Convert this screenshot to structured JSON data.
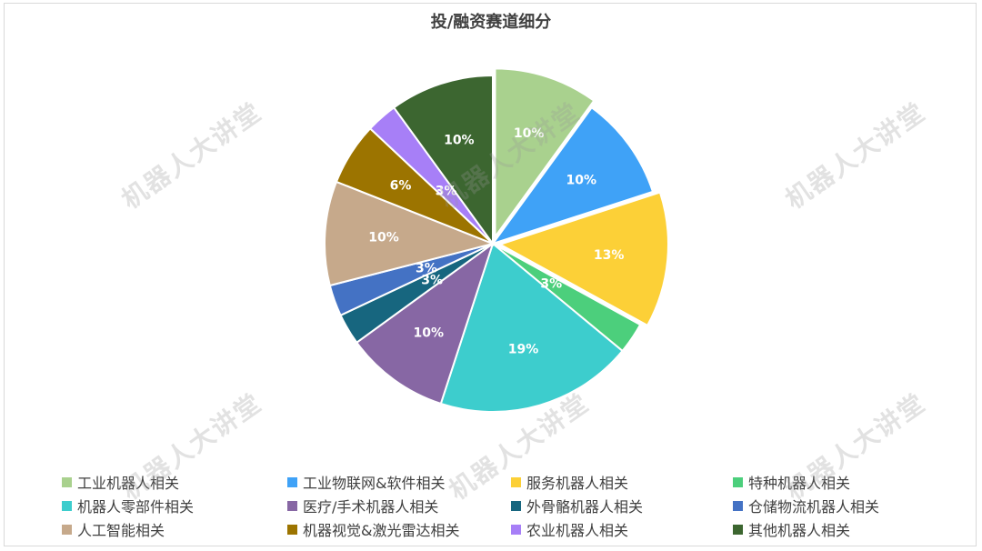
{
  "chart_data": {
    "type": "pie",
    "title": "投/融资赛道细分",
    "slices": [
      {
        "label": "工业机器人相关",
        "value": 10,
        "display": "10%",
        "color": "#a9d18e",
        "exploded": true
      },
      {
        "label": "工业物联网&软件相关",
        "value": 10,
        "display": "10%",
        "color": "#3fa2f7",
        "exploded": false
      },
      {
        "label": "服务机器人相关",
        "value": 13,
        "display": "13%",
        "color": "#fcd037",
        "exploded": true
      },
      {
        "label": "特种机器人相关",
        "value": 3,
        "display": "3%",
        "color": "#4ccf7c",
        "exploded": false
      },
      {
        "label": "机器人零部件相关",
        "value": 19,
        "display": "19%",
        "color": "#3dcdcd",
        "exploded": false
      },
      {
        "label": "医疗/手术机器人相关",
        "value": 10,
        "display": "10%",
        "color": "#8767a4",
        "exploded": false
      },
      {
        "label": "外骨骼机器人相关",
        "value": 3,
        "display": "3%",
        "color": "#17667f",
        "exploded": false
      },
      {
        "label": "仓储物流机器人相关",
        "value": 3,
        "display": "3%",
        "color": "#4472c4",
        "exploded": false
      },
      {
        "label": "人工智能相关",
        "value": 10,
        "display": "10%",
        "color": "#c6a98b",
        "exploded": false
      },
      {
        "label": "机器视觉&激光雷达相关",
        "value": 6,
        "display": "6%",
        "color": "#9c7400",
        "exploded": false
      },
      {
        "label": "农业机器人相关",
        "value": 3,
        "display": "3%",
        "color": "#a77ff7",
        "exploded": false
      },
      {
        "label": "其他机器人相关",
        "value": 10,
        "display": "10%",
        "color": "#3c6630",
        "exploded": false
      }
    ],
    "legend_position": "bottom"
  },
  "watermark": "机器人大讲堂"
}
